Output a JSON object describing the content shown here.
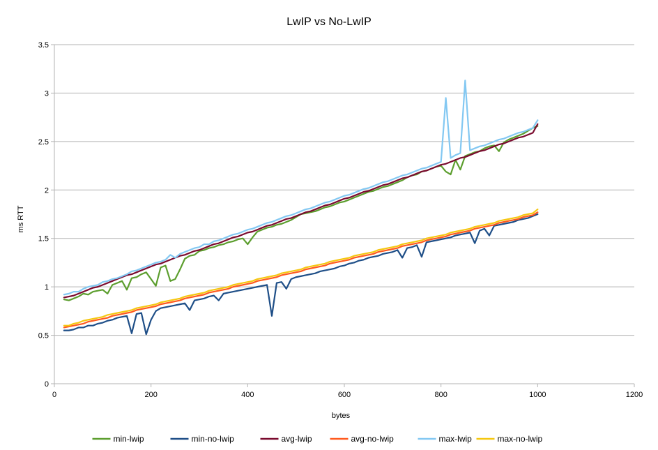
{
  "chart_data": {
    "type": "line",
    "title": "LwIP vs No-LwIP",
    "xlabel": "bytes",
    "ylabel": "ms RTT",
    "xlim": [
      0,
      1200
    ],
    "ylim": [
      0,
      3.5
    ],
    "x_ticks": [
      0,
      200,
      400,
      600,
      800,
      1000,
      1200
    ],
    "y_ticks": [
      0,
      0.5,
      1,
      1.5,
      2,
      2.5,
      3,
      3.5
    ],
    "x_tick_labels": [
      "0",
      "200",
      "400",
      "600",
      "800",
      "1000",
      "1200"
    ],
    "y_tick_labels": [
      "0",
      "0.5",
      "1",
      "1.5",
      "2",
      "2.5",
      "3",
      "3.5"
    ],
    "grid": "horizontal",
    "legend_position": "bottom",
    "x": [
      20,
      30,
      40,
      50,
      60,
      70,
      80,
      90,
      100,
      110,
      120,
      130,
      140,
      150,
      160,
      170,
      180,
      190,
      200,
      210,
      220,
      230,
      240,
      250,
      260,
      270,
      280,
      290,
      300,
      310,
      320,
      330,
      340,
      350,
      360,
      370,
      380,
      390,
      400,
      410,
      420,
      430,
      440,
      450,
      460,
      470,
      480,
      490,
      500,
      510,
      520,
      530,
      540,
      550,
      560,
      570,
      580,
      590,
      600,
      610,
      620,
      630,
      640,
      650,
      660,
      670,
      680,
      690,
      700,
      710,
      720,
      730,
      740,
      750,
      760,
      770,
      780,
      790,
      800,
      810,
      820,
      830,
      840,
      850,
      860,
      870,
      880,
      890,
      900,
      910,
      920,
      930,
      940,
      950,
      960,
      970,
      980,
      990,
      1000
    ],
    "series": [
      {
        "name": "min-lwip",
        "color": "#5c9e2e",
        "values": [
          0.87,
          0.86,
          0.88,
          0.9,
          0.93,
          0.92,
          0.95,
          0.96,
          0.97,
          0.93,
          1.02,
          1.04,
          1.06,
          0.97,
          1.09,
          1.1,
          1.13,
          1.15,
          1.08,
          1.01,
          1.2,
          1.22,
          1.06,
          1.08,
          1.18,
          1.29,
          1.32,
          1.33,
          1.37,
          1.38,
          1.4,
          1.41,
          1.43,
          1.44,
          1.46,
          1.47,
          1.49,
          1.5,
          1.44,
          1.51,
          1.57,
          1.59,
          1.61,
          1.62,
          1.64,
          1.65,
          1.67,
          1.69,
          1.72,
          1.75,
          1.76,
          1.77,
          1.78,
          1.8,
          1.82,
          1.83,
          1.85,
          1.87,
          1.88,
          1.9,
          1.92,
          1.94,
          1.96,
          1.98,
          1.99,
          2.01,
          2.03,
          2.04,
          2.06,
          2.08,
          2.1,
          2.13,
          2.15,
          2.16,
          2.19,
          2.2,
          2.22,
          2.24,
          2.25,
          2.19,
          2.16,
          2.31,
          2.21,
          2.35,
          2.37,
          2.39,
          2.4,
          2.43,
          2.45,
          2.46,
          2.4,
          2.49,
          2.52,
          2.54,
          2.56,
          2.58,
          2.61,
          2.64,
          2.66
        ]
      },
      {
        "name": "min-no-lwip",
        "color": "#1e4e87",
        "values": [
          0.55,
          0.55,
          0.56,
          0.58,
          0.58,
          0.6,
          0.6,
          0.62,
          0.63,
          0.65,
          0.66,
          0.68,
          0.69,
          0.7,
          0.52,
          0.72,
          0.73,
          0.51,
          0.66,
          0.75,
          0.78,
          0.79,
          0.8,
          0.81,
          0.82,
          0.83,
          0.76,
          0.86,
          0.87,
          0.88,
          0.9,
          0.91,
          0.86,
          0.93,
          0.94,
          0.95,
          0.96,
          0.97,
          0.98,
          0.99,
          1.0,
          1.01,
          1.02,
          0.7,
          1.04,
          1.05,
          0.98,
          1.08,
          1.1,
          1.11,
          1.12,
          1.13,
          1.14,
          1.16,
          1.17,
          1.18,
          1.19,
          1.21,
          1.22,
          1.24,
          1.25,
          1.27,
          1.28,
          1.3,
          1.31,
          1.32,
          1.34,
          1.35,
          1.36,
          1.38,
          1.3,
          1.4,
          1.41,
          1.43,
          1.31,
          1.46,
          1.47,
          1.48,
          1.49,
          1.5,
          1.51,
          1.53,
          1.54,
          1.55,
          1.56,
          1.45,
          1.58,
          1.6,
          1.53,
          1.63,
          1.64,
          1.65,
          1.66,
          1.67,
          1.69,
          1.7,
          1.71,
          1.73,
          1.75
        ]
      },
      {
        "name": "avg-lwip",
        "color": "#7a0a2e",
        "values": [
          0.89,
          0.9,
          0.91,
          0.93,
          0.95,
          0.97,
          0.99,
          1.0,
          1.02,
          1.04,
          1.06,
          1.08,
          1.1,
          1.12,
          1.13,
          1.15,
          1.17,
          1.19,
          1.21,
          1.23,
          1.24,
          1.26,
          1.28,
          1.3,
          1.32,
          1.33,
          1.35,
          1.37,
          1.38,
          1.4,
          1.42,
          1.44,
          1.45,
          1.47,
          1.49,
          1.51,
          1.52,
          1.54,
          1.56,
          1.57,
          1.59,
          1.61,
          1.63,
          1.64,
          1.66,
          1.68,
          1.7,
          1.71,
          1.73,
          1.75,
          1.77,
          1.78,
          1.8,
          1.82,
          1.84,
          1.85,
          1.87,
          1.89,
          1.91,
          1.92,
          1.94,
          1.96,
          1.98,
          1.99,
          2.01,
          2.03,
          2.05,
          2.06,
          2.08,
          2.1,
          2.12,
          2.13,
          2.15,
          2.17,
          2.19,
          2.2,
          2.22,
          2.24,
          2.26,
          2.27,
          2.29,
          2.31,
          2.33,
          2.34,
          2.36,
          2.38,
          2.4,
          2.41,
          2.43,
          2.45,
          2.47,
          2.48,
          2.5,
          2.52,
          2.54,
          2.55,
          2.57,
          2.59,
          2.68
        ]
      },
      {
        "name": "avg-no-lwip",
        "color": "#ff5a1e",
        "values": [
          0.58,
          0.59,
          0.6,
          0.61,
          0.62,
          0.64,
          0.65,
          0.66,
          0.67,
          0.68,
          0.7,
          0.71,
          0.72,
          0.73,
          0.74,
          0.76,
          0.77,
          0.78,
          0.79,
          0.8,
          0.82,
          0.83,
          0.84,
          0.85,
          0.86,
          0.88,
          0.89,
          0.9,
          0.91,
          0.92,
          0.94,
          0.95,
          0.96,
          0.97,
          0.98,
          1.0,
          1.01,
          1.02,
          1.03,
          1.04,
          1.06,
          1.07,
          1.08,
          1.09,
          1.1,
          1.12,
          1.13,
          1.14,
          1.15,
          1.16,
          1.18,
          1.19,
          1.2,
          1.21,
          1.22,
          1.24,
          1.25,
          1.26,
          1.27,
          1.28,
          1.3,
          1.31,
          1.32,
          1.33,
          1.34,
          1.36,
          1.37,
          1.38,
          1.39,
          1.4,
          1.42,
          1.43,
          1.44,
          1.45,
          1.46,
          1.48,
          1.49,
          1.5,
          1.51,
          1.52,
          1.54,
          1.55,
          1.56,
          1.57,
          1.58,
          1.6,
          1.61,
          1.62,
          1.63,
          1.64,
          1.66,
          1.67,
          1.68,
          1.69,
          1.7,
          1.72,
          1.73,
          1.74,
          1.77
        ]
      },
      {
        "name": "max-lwip",
        "color": "#83c8f2",
        "values": [
          0.92,
          0.93,
          0.95,
          0.95,
          0.98,
          1.0,
          1.01,
          1.02,
          1.05,
          1.06,
          1.08,
          1.09,
          1.11,
          1.13,
          1.16,
          1.17,
          1.19,
          1.21,
          1.23,
          1.25,
          1.26,
          1.28,
          1.33,
          1.3,
          1.34,
          1.36,
          1.38,
          1.4,
          1.41,
          1.44,
          1.44,
          1.47,
          1.48,
          1.5,
          1.52,
          1.54,
          1.55,
          1.57,
          1.59,
          1.6,
          1.62,
          1.64,
          1.66,
          1.67,
          1.69,
          1.71,
          1.73,
          1.74,
          1.76,
          1.78,
          1.8,
          1.81,
          1.83,
          1.85,
          1.87,
          1.88,
          1.9,
          1.92,
          1.94,
          1.95,
          1.97,
          1.99,
          2.01,
          2.02,
          2.04,
          2.06,
          2.08,
          2.09,
          2.11,
          2.13,
          2.15,
          2.16,
          2.18,
          2.2,
          2.22,
          2.23,
          2.25,
          2.27,
          2.29,
          2.95,
          2.33,
          2.36,
          2.38,
          3.13,
          2.41,
          2.43,
          2.45,
          2.46,
          2.48,
          2.5,
          2.52,
          2.53,
          2.55,
          2.57,
          2.59,
          2.6,
          2.62,
          2.64,
          2.72
        ]
      },
      {
        "name": "max-no-lwip",
        "color": "#f5c710",
        "values": [
          0.6,
          0.6,
          0.62,
          0.63,
          0.65,
          0.66,
          0.67,
          0.68,
          0.69,
          0.71,
          0.72,
          0.73,
          0.74,
          0.75,
          0.76,
          0.78,
          0.79,
          0.8,
          0.81,
          0.82,
          0.84,
          0.85,
          0.86,
          0.87,
          0.88,
          0.9,
          0.91,
          0.92,
          0.93,
          0.94,
          0.96,
          0.97,
          0.98,
          0.99,
          1.0,
          1.02,
          1.03,
          1.04,
          1.05,
          1.06,
          1.08,
          1.09,
          1.1,
          1.11,
          1.12,
          1.14,
          1.15,
          1.16,
          1.17,
          1.18,
          1.2,
          1.21,
          1.22,
          1.23,
          1.24,
          1.26,
          1.27,
          1.28,
          1.29,
          1.3,
          1.32,
          1.33,
          1.34,
          1.35,
          1.36,
          1.38,
          1.39,
          1.4,
          1.41,
          1.42,
          1.44,
          1.45,
          1.46,
          1.47,
          1.48,
          1.5,
          1.51,
          1.52,
          1.53,
          1.54,
          1.56,
          1.57,
          1.58,
          1.59,
          1.6,
          1.62,
          1.63,
          1.64,
          1.65,
          1.66,
          1.68,
          1.69,
          1.7,
          1.71,
          1.72,
          1.74,
          1.75,
          1.76,
          1.8
        ]
      }
    ]
  }
}
